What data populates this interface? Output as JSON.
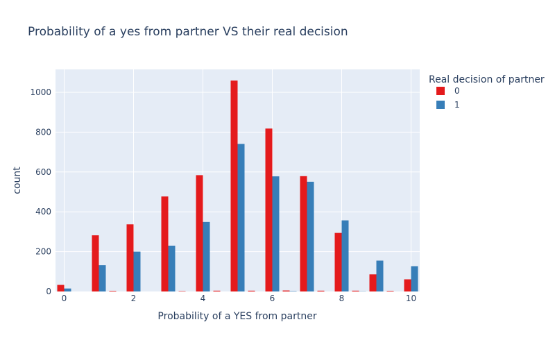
{
  "chart_data": {
    "type": "bar",
    "title": "Probability of a yes from partner VS their real decision",
    "xlabel": "Probability of a YES from partner",
    "ylabel": "count",
    "xlim": [
      -0.25,
      10.25
    ],
    "ylim": [
      0,
      1115
    ],
    "x_ticks": [
      0,
      2,
      4,
      6,
      8,
      10
    ],
    "y_ticks": [
      0,
      200,
      400,
      600,
      800,
      1000
    ],
    "bin_width": 0.5,
    "grid": true,
    "legend": {
      "title": "Real decision of partner",
      "position": "top-right"
    },
    "series": [
      {
        "name": "0",
        "color": "#e41a1c",
        "x": [
          0,
          1,
          1.5,
          2,
          3,
          3.5,
          4,
          4.5,
          5,
          5.5,
          6,
          6.5,
          7,
          7.5,
          8,
          8.5,
          9,
          9.5,
          10
        ],
        "values": [
          33,
          282,
          3,
          337,
          477,
          2,
          584,
          4,
          1059,
          4,
          818,
          5,
          579,
          4,
          294,
          4,
          86,
          3,
          61
        ]
      },
      {
        "name": "1",
        "color": "#377eb8",
        "x": [
          0,
          1,
          2,
          3,
          4,
          5,
          6,
          6.5,
          7,
          8,
          8.5,
          9,
          10
        ],
        "values": [
          15,
          132,
          200,
          230,
          349,
          741,
          578,
          2,
          551,
          357,
          1,
          155,
          127
        ]
      }
    ]
  }
}
